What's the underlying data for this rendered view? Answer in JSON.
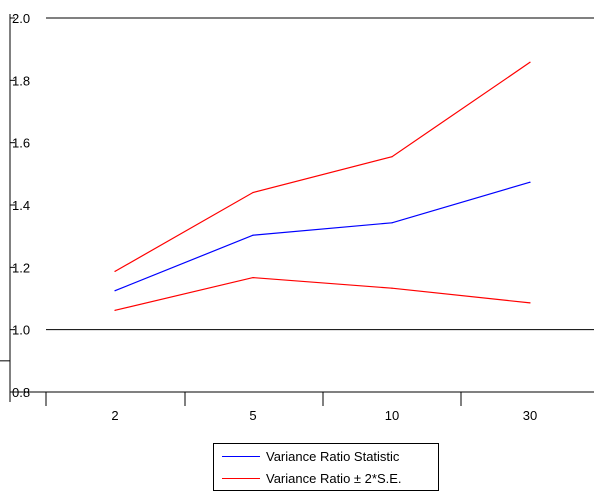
{
  "chart_data": {
    "type": "line",
    "categories": [
      "2",
      "5",
      "10",
      "30"
    ],
    "ylim": [
      0.8,
      2.0
    ],
    "yticks": [
      "0.8",
      "1.0",
      "1.2",
      "1.4",
      "1.6",
      "1.8",
      "2.0"
    ],
    "reference_line": 1.0,
    "series": [
      {
        "name": "Variance Ratio Statistic",
        "color": "#0000ff",
        "values": [
          1.125,
          1.303,
          1.343,
          1.473
        ]
      },
      {
        "name": "Variance Ratio ± 2*S.E.",
        "color": "#ff0000",
        "values": [
          1.187,
          1.44,
          1.555,
          1.858
        ]
      },
      {
        "name": "",
        "color": "#ff0000",
        "values": [
          1.062,
          1.167,
          1.133,
          1.086
        ]
      }
    ],
    "legend": {
      "position": "bottom-center",
      "entries": [
        "Variance Ratio Statistic",
        "Variance Ratio ± 2*S.E."
      ]
    }
  }
}
